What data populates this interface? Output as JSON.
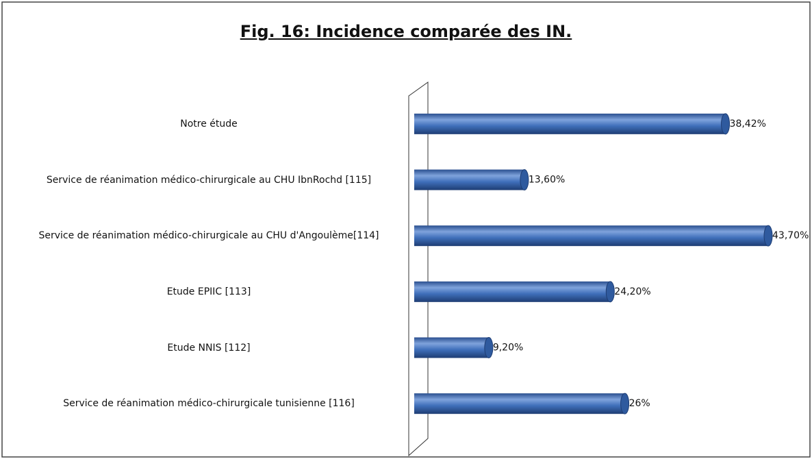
{
  "chart_data": {
    "type": "bar",
    "orientation": "horizontal",
    "title": "Fig. 16: Incidence comparée des IN.",
    "categories": [
      "Notre étude",
      "Service de réanimation médico-chirurgicale au CHU IbnRochd [115]",
      "Service de réanimation médico-chirurgicale au CHU d'Angoulème[114]",
      "Etude EPIIC [113]",
      "Etude NNIS [112]",
      "Service de réanimation médico-chirurgicale tunisienne [116]"
    ],
    "values": [
      38.42,
      13.6,
      43.7,
      24.2,
      9.2,
      26
    ],
    "value_labels": [
      "38,42%",
      "13,60%",
      "43,70%",
      "24,20%",
      "9,20%",
      "26%"
    ],
    "color": "#3f6fba"
  }
}
